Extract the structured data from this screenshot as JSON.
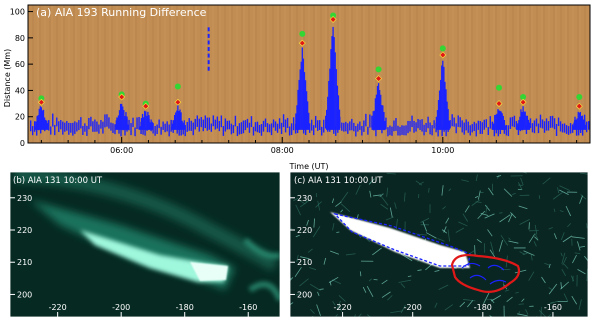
{
  "chart_data": [
    {
      "type": "scatter",
      "panel_label": "(a) AIA 193 Running Difference",
      "xlabel": "Time (UT)",
      "ylabel": "Distance (Mm)",
      "xlim": [
        "04:50",
        "11:50"
      ],
      "ylim": [
        0,
        105
      ],
      "x_ticks": [
        "06:00",
        "08:00",
        "10:00"
      ],
      "y_ticks": [
        0,
        20,
        40,
        60,
        80,
        100
      ],
      "background_color": "#c18d53",
      "colors": {
        "trace": "#1a22ff",
        "peak_green": "#33d633",
        "peak_red": "#e01818"
      },
      "series": [
        {
          "marker": "green-dot",
          "points": [
            {
              "x": "05:00",
              "y": 34
            },
            {
              "x": "06:00",
              "y": 37
            },
            {
              "x": "06:18",
              "y": 30
            },
            {
              "x": "06:42",
              "y": 43
            },
            {
              "x": "08:15",
              "y": 83
            },
            {
              "x": "08:38",
              "y": 97
            },
            {
              "x": "09:12",
              "y": 56
            },
            {
              "x": "10:00",
              "y": 72
            },
            {
              "x": "10:42",
              "y": 42
            },
            {
              "x": "11:00",
              "y": 35
            },
            {
              "x": "11:42",
              "y": 35
            }
          ]
        },
        {
          "marker": "red-diamond",
          "points": [
            {
              "x": "05:00",
              "y": 31
            },
            {
              "x": "06:00",
              "y": 35
            },
            {
              "x": "06:18",
              "y": 28
            },
            {
              "x": "06:42",
              "y": 31
            },
            {
              "x": "08:15",
              "y": 76
            },
            {
              "x": "08:38",
              "y": 94
            },
            {
              "x": "09:12",
              "y": 49
            },
            {
              "x": "10:00",
              "y": 67
            },
            {
              "x": "10:42",
              "y": 30
            },
            {
              "x": "11:00",
              "y": 31
            },
            {
              "x": "11:42",
              "y": 28
            }
          ]
        }
      ]
    },
    {
      "type": "heatmap",
      "panel_label": "(b) AIA 131 10:00 UT",
      "x_ticks": [
        -220,
        -200,
        -180,
        -160
      ],
      "y_ticks": [
        230,
        220,
        210,
        200
      ],
      "xlim": [
        -235,
        -150
      ],
      "ylim": [
        193,
        238
      ],
      "colors": {
        "background": "#062a22",
        "bright": "#d8fff2"
      }
    },
    {
      "type": "heatmap",
      "panel_label": "(c) AIA 131 10:00 UT",
      "x_ticks": [
        -220,
        -200,
        -180,
        -160
      ],
      "y_ticks": [
        230,
        220,
        210,
        200
      ],
      "xlim": [
        -235,
        -150
      ],
      "ylim": [
        193,
        238
      ],
      "colors": {
        "background": "#0a2622",
        "contour_blue": "#1a22ff",
        "contour_red": "#e01818"
      }
    }
  ]
}
